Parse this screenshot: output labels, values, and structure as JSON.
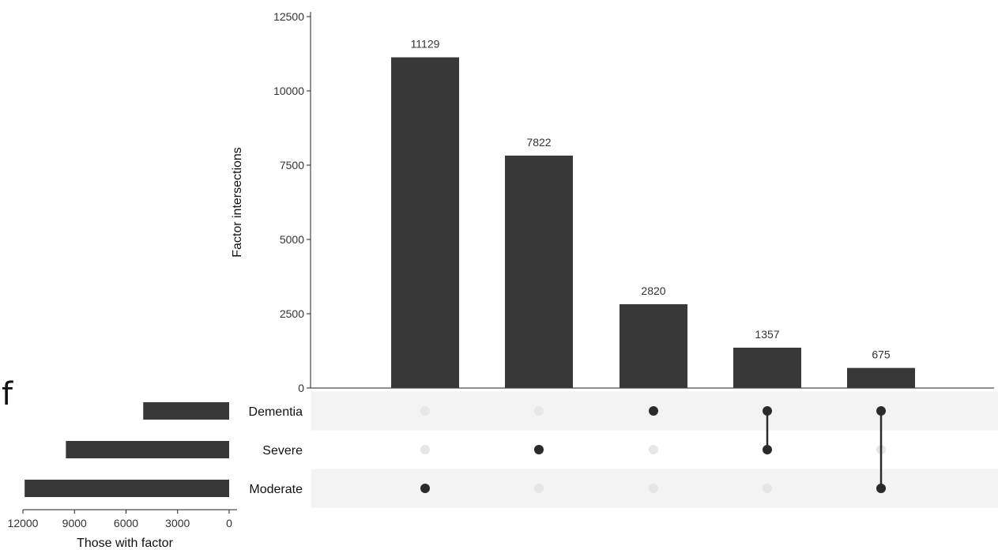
{
  "panel_label": "f",
  "chart_data": {
    "type": "bar",
    "subtype": "upset",
    "intersection_bars": {
      "ylabel": "Factor intersections",
      "ylim": [
        0,
        12500
      ],
      "yticks": [
        0,
        2500,
        5000,
        7500,
        10000,
        12500
      ],
      "values": [
        11129,
        7822,
        2820,
        1357,
        675
      ],
      "value_labels": [
        "11129",
        "7822",
        "2820",
        "1357",
        "675"
      ],
      "memberships": [
        [
          "Moderate"
        ],
        [
          "Severe"
        ],
        [
          "Dementia"
        ],
        [
          "Dementia",
          "Severe"
        ],
        [
          "Dementia",
          "Moderate"
        ]
      ]
    },
    "set_sizes": {
      "xlabel": "Those with factor",
      "sets": [
        "Dementia",
        "Severe",
        "Moderate"
      ],
      "values": [
        5000,
        9500,
        11900
      ],
      "xlim": [
        12000,
        0
      ],
      "xticks": [
        12000,
        9000,
        6000,
        3000,
        0
      ]
    },
    "colors": {
      "bar": "#383838",
      "dot_active": "#2a2a2a",
      "dot_inactive": "#e6e6e6",
      "stripe": "#f3f3f3",
      "axis": "#222222",
      "text": "#333333"
    }
  }
}
